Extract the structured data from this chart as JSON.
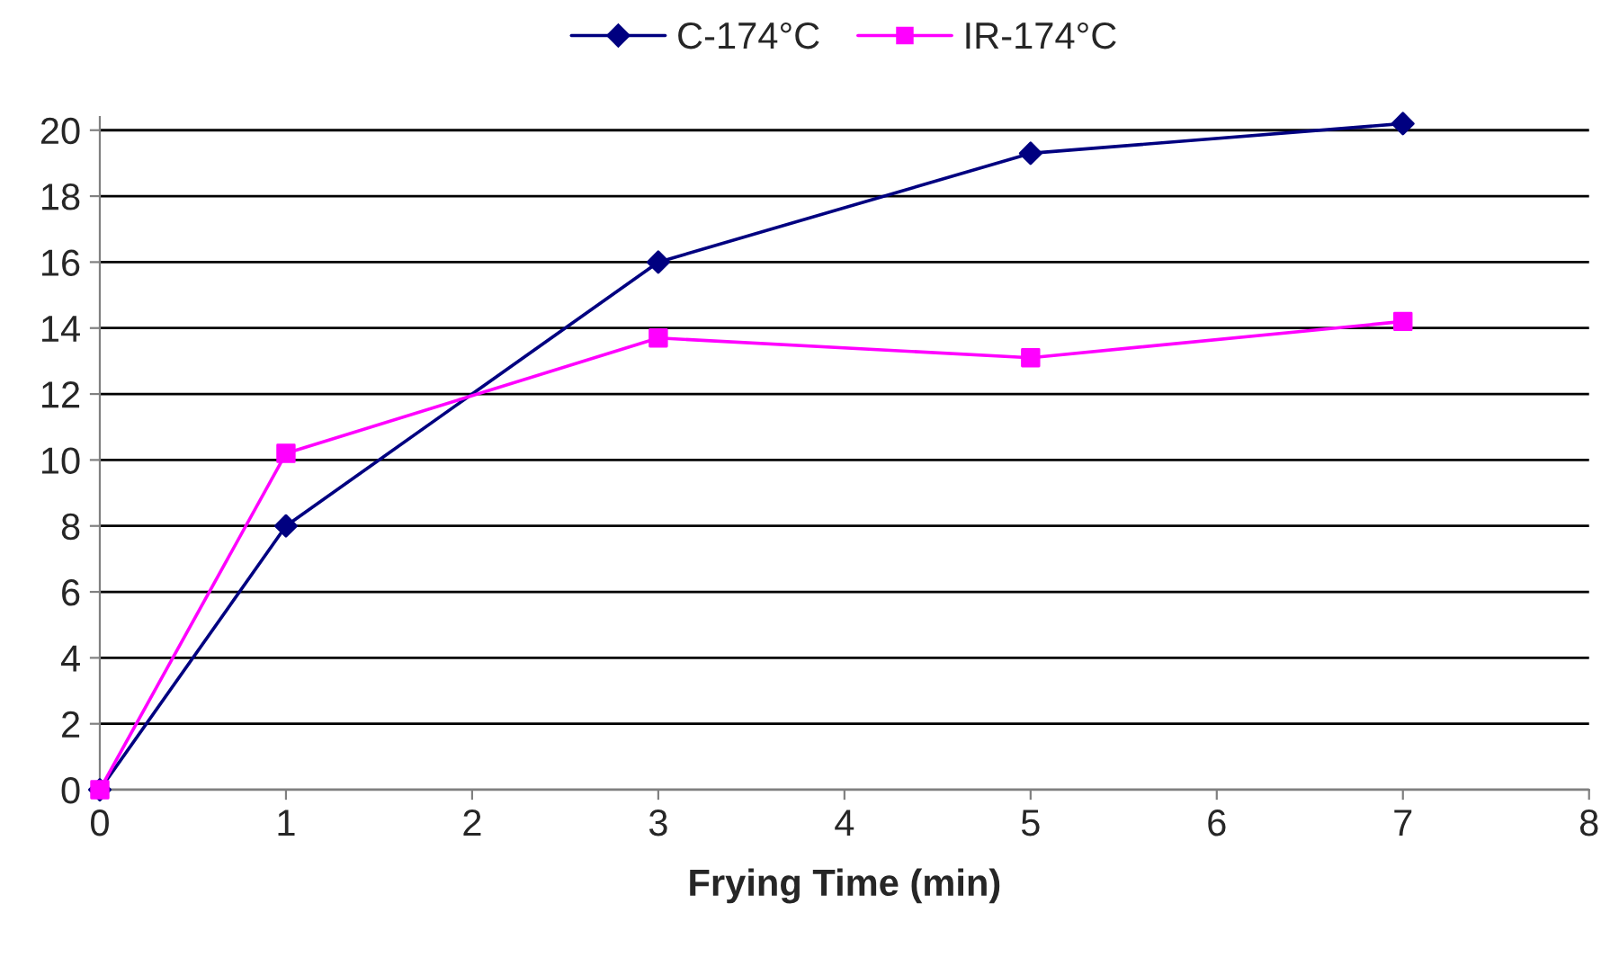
{
  "chart_data": {
    "type": "line",
    "xlabel": "Frying Time (min)",
    "x": [
      0,
      1,
      3,
      5,
      7
    ],
    "series": [
      {
        "name": "C-174°C",
        "color": "#000080",
        "marker": "diamond",
        "values": [
          0,
          8,
          16,
          19.3,
          20.2
        ]
      },
      {
        "name": "IR-174°C",
        "color": "#ff00ff",
        "marker": "square",
        "values": [
          0,
          10.2,
          13.7,
          13.1,
          14.2
        ]
      }
    ],
    "xlim": [
      0,
      8
    ],
    "xticks": [
      0,
      1,
      2,
      3,
      4,
      5,
      6,
      7,
      8
    ],
    "ylim": [
      0,
      20.4
    ],
    "yticks": [
      0,
      2,
      4,
      6,
      8,
      10,
      12,
      14,
      16,
      18,
      20
    ],
    "grid": "y",
    "legend": "top",
    "line_style": "solid"
  }
}
